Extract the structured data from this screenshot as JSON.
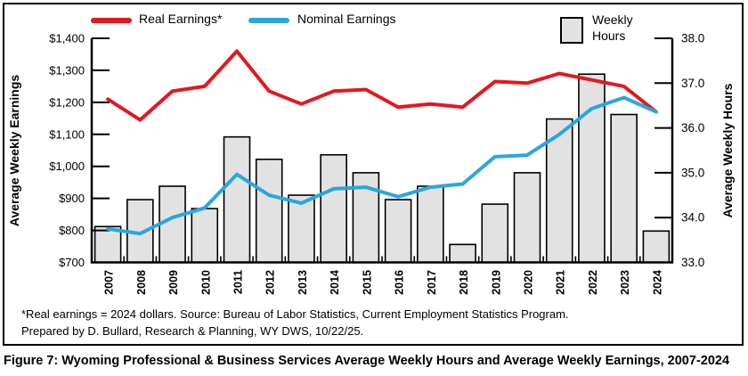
{
  "figure": {
    "caption": "Figure 7: Wyoming Professional & Business Services Average Weekly Hours and Average Weekly Earnings, 2007-2024",
    "footnote_line1": "*Real earnings = 2024 dollars. Source: Bureau of Labor Statistics, Current Employment Statistics Program.",
    "footnote_line2": "Prepared by D. Bullard, Research & Planning, WY DWS, 10/22/25."
  },
  "legend": {
    "real_label": "Real Earnings*",
    "nominal_label": "Nominal Earnings",
    "hours_label_line1": "Weekly",
    "hours_label_line2": "Hours"
  },
  "axes": {
    "left_title": "Average Weekly Earnings",
    "right_title": "Average Weekly Hours",
    "left_tick_labels": [
      "$1,400",
      "$1,300",
      "$1,200",
      "$1,100",
      "$1,000",
      "$900",
      "$800",
      "$700"
    ],
    "right_tick_labels": [
      "38.0",
      "37.0",
      "36.0",
      "35.0",
      "34.0",
      "33.0"
    ]
  },
  "colors": {
    "real_line": "#e3181e",
    "nominal_line": "#2ba6de",
    "bar_fill": "#e2e2e2",
    "bar_stroke": "#000000",
    "axis": "#000000",
    "text": "#000000"
  },
  "chart_data": {
    "type": "combo",
    "title": "",
    "categories": [
      "2007",
      "2008",
      "2009",
      "2010",
      "2011",
      "2012",
      "2013",
      "2014",
      "2015",
      "2016",
      "2017",
      "2018",
      "2019",
      "2020",
      "2021",
      "2022",
      "2023",
      "2024"
    ],
    "series": [
      {
        "name": "Real Earnings*",
        "type": "line",
        "axis": "left",
        "values": [
          1210,
          1145,
          1235,
          1250,
          1360,
          1235,
          1195,
          1235,
          1240,
          1185,
          1195,
          1185,
          1265,
          1260,
          1290,
          1270,
          1250,
          1170
        ]
      },
      {
        "name": "Nominal Earnings",
        "type": "line",
        "axis": "left",
        "values": [
          805,
          790,
          840,
          870,
          975,
          910,
          885,
          930,
          935,
          905,
          935,
          945,
          1030,
          1035,
          1100,
          1180,
          1215,
          1170
        ]
      },
      {
        "name": "Weekly Hours",
        "type": "bar",
        "axis": "right",
        "values": [
          33.8,
          34.4,
          34.7,
          34.2,
          35.8,
          35.3,
          34.5,
          35.4,
          35.0,
          34.4,
          34.7,
          33.4,
          34.3,
          35.0,
          36.2,
          37.2,
          36.3,
          33.7
        ]
      }
    ],
    "left_axis": {
      "label": "Average Weekly Earnings",
      "min": 700,
      "max": 1400,
      "step": 100,
      "format": "$"
    },
    "right_axis": {
      "label": "Average Weekly Hours",
      "min": 33.0,
      "max": 38.0,
      "step": 1.0
    },
    "x_label": "",
    "grid": false,
    "legend_position": "top"
  }
}
